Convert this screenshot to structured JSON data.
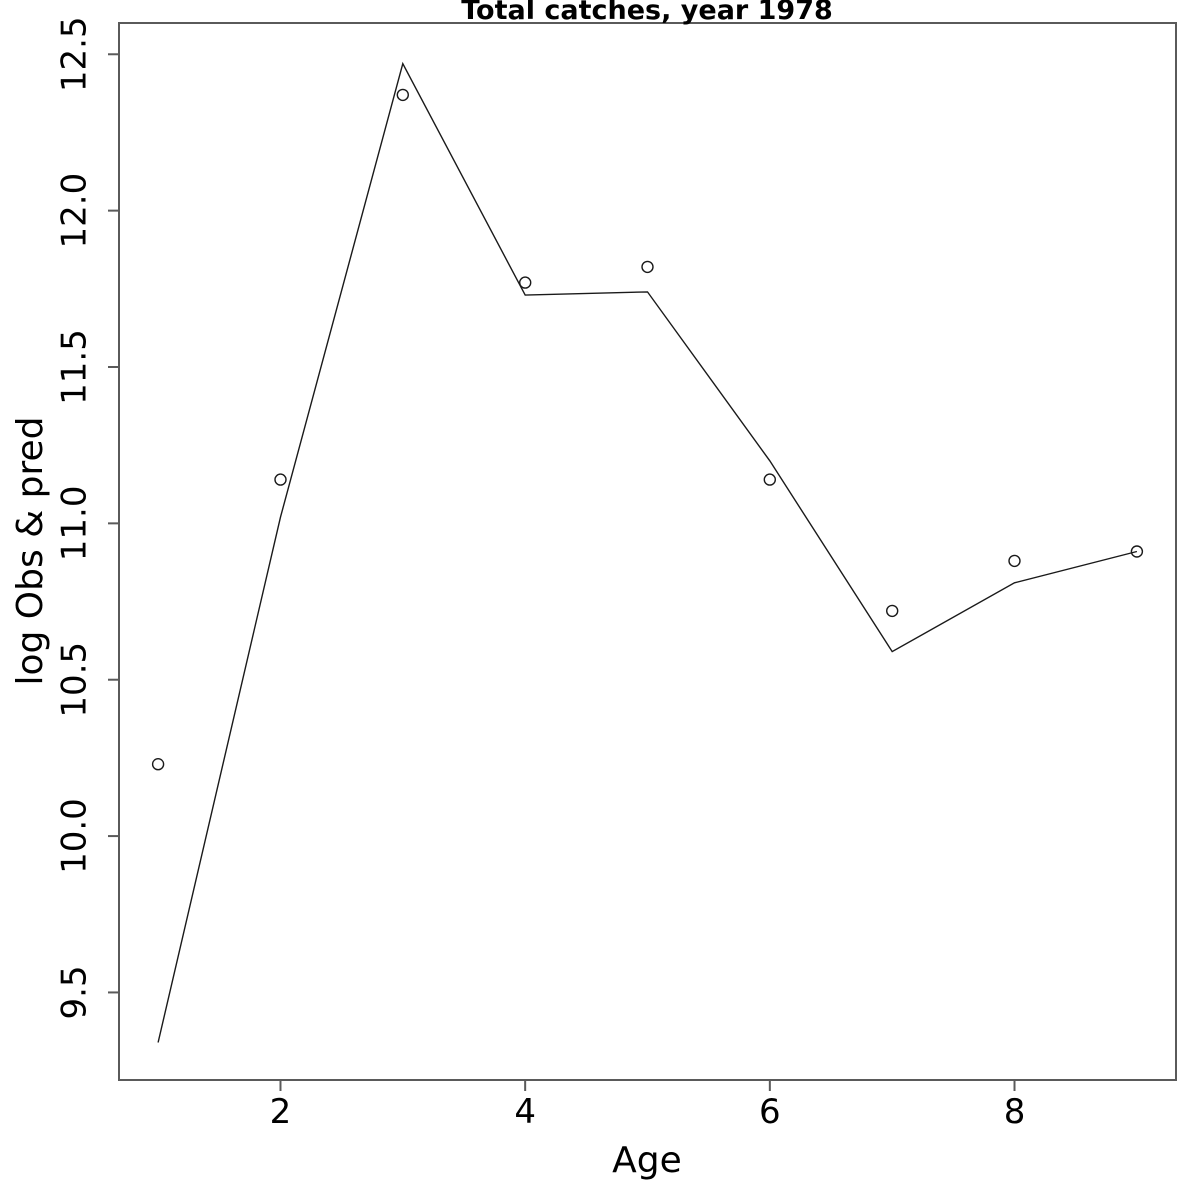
{
  "chart_data": {
    "type": "line",
    "title": "Total catches, year 1978",
    "xlabel": "Age",
    "ylabel": "log Obs & pred",
    "x": [
      1,
      2,
      3,
      4,
      5,
      6,
      7,
      8,
      9
    ],
    "series": [
      {
        "name": "obs",
        "style": "points",
        "marker": "open-circle",
        "values": [
          10.23,
          11.14,
          12.37,
          11.77,
          11.82,
          11.14,
          10.72,
          10.88,
          10.91
        ]
      },
      {
        "name": "pred",
        "style": "line",
        "values": [
          9.34,
          11.02,
          12.47,
          11.73,
          11.74,
          11.2,
          10.59,
          10.81,
          10.91
        ]
      }
    ],
    "x_ticks": [
      2,
      4,
      6,
      8
    ],
    "y_ticks": [
      9.5,
      10.0,
      10.5,
      11.0,
      11.5,
      12.0,
      12.5
    ],
    "xlim": [
      0.68,
      9.32
    ],
    "ylim": [
      9.22,
      12.6
    ],
    "grid": false,
    "legend": "none",
    "frame": true
  },
  "colors": {
    "background": "#ffffff",
    "frame": "#5a5a5a",
    "data": "#1a1a1a",
    "text": "#000000"
  }
}
